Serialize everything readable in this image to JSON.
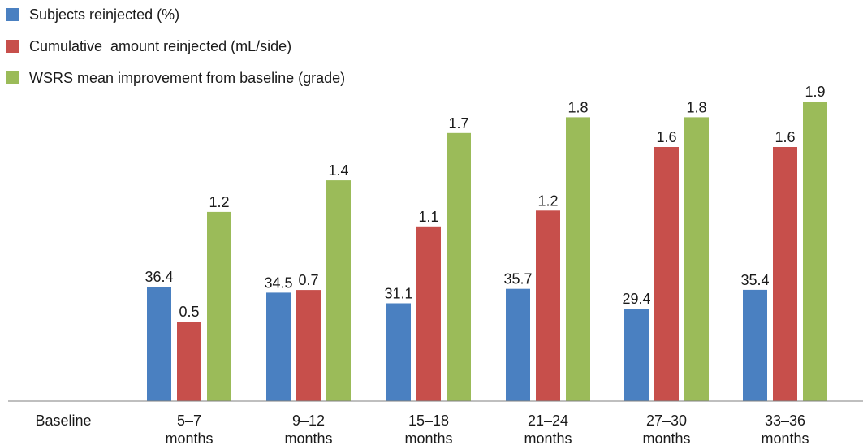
{
  "chart_data": {
    "type": "bar",
    "categories": [
      [
        "Baseline"
      ],
      [
        "5–7",
        "months"
      ],
      [
        "9–12",
        "months"
      ],
      [
        "15–18",
        "months"
      ],
      [
        "21–24",
        "months"
      ],
      [
        "27–30",
        "months"
      ],
      [
        "33–36",
        "months"
      ]
    ],
    "series": [
      {
        "name": "Subjects reinjected (%)",
        "color": "#4a80c1",
        "values": [
          null,
          36.4,
          34.5,
          31.1,
          35.7,
          29.4,
          35.4
        ]
      },
      {
        "name": "Cumulative  amount reinjected (mL/side)",
        "color": "#c74f4b",
        "values": [
          null,
          0.5,
          0.7,
          1.1,
          1.2,
          1.6,
          1.6
        ]
      },
      {
        "name": "WSRS mean improvement from baseline (grade)",
        "color": "#9bbb59",
        "values": [
          null,
          1.2,
          1.4,
          1.7,
          1.8,
          1.8,
          1.9
        ]
      }
    ],
    "legend_position": "top-left",
    "grid": false
  }
}
